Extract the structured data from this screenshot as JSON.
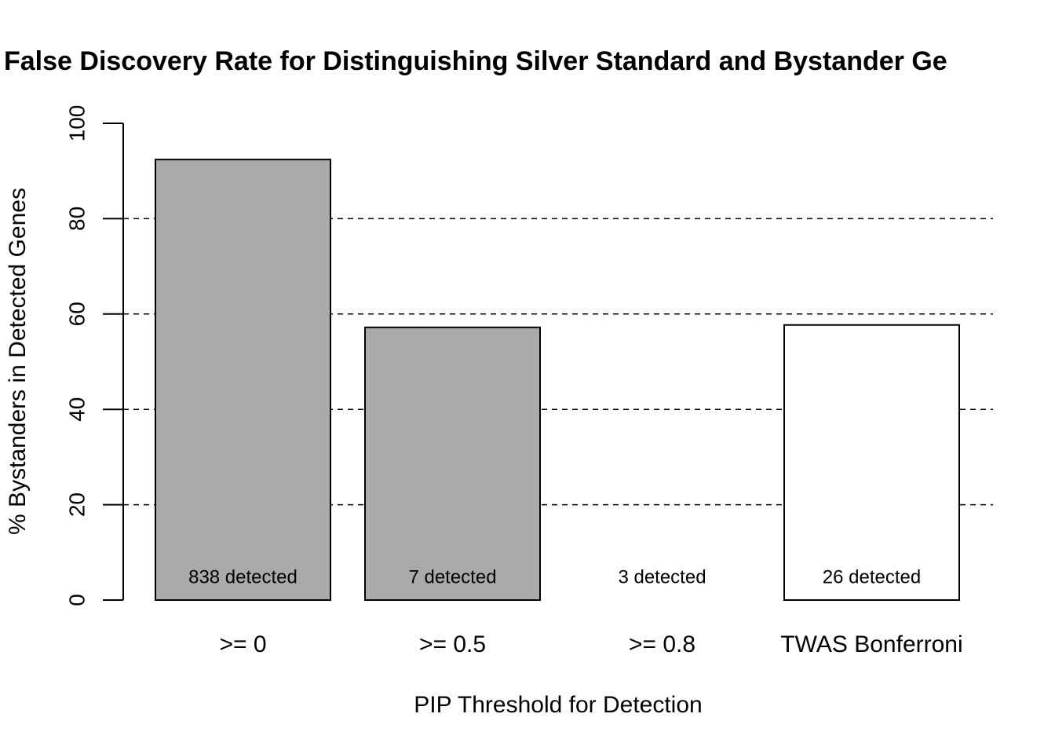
{
  "chart_data": {
    "type": "bar",
    "title": "False Discovery Rate for Distinguishing Silver Standard and Bystander Ge",
    "x_label": "PIP Threshold for Detection",
    "y_label": "% Bystanders in Detected Genes",
    "categories": [
      ">= 0",
      ">= 0.5",
      ">= 0.8",
      "TWAS Bonferroni"
    ],
    "values": [
      92.4,
      57.2,
      0,
      57.7
    ],
    "colors": [
      "#aaaaaa",
      "#aaaaaa",
      "#ffffff",
      "#ffffff"
    ],
    "annotations": [
      "838 detected",
      "7 detected",
      "3 detected",
      "26 detected"
    ],
    "ylim": [
      0,
      100
    ],
    "yticks": [
      0,
      20,
      40,
      60,
      80,
      100
    ],
    "grid": true
  }
}
